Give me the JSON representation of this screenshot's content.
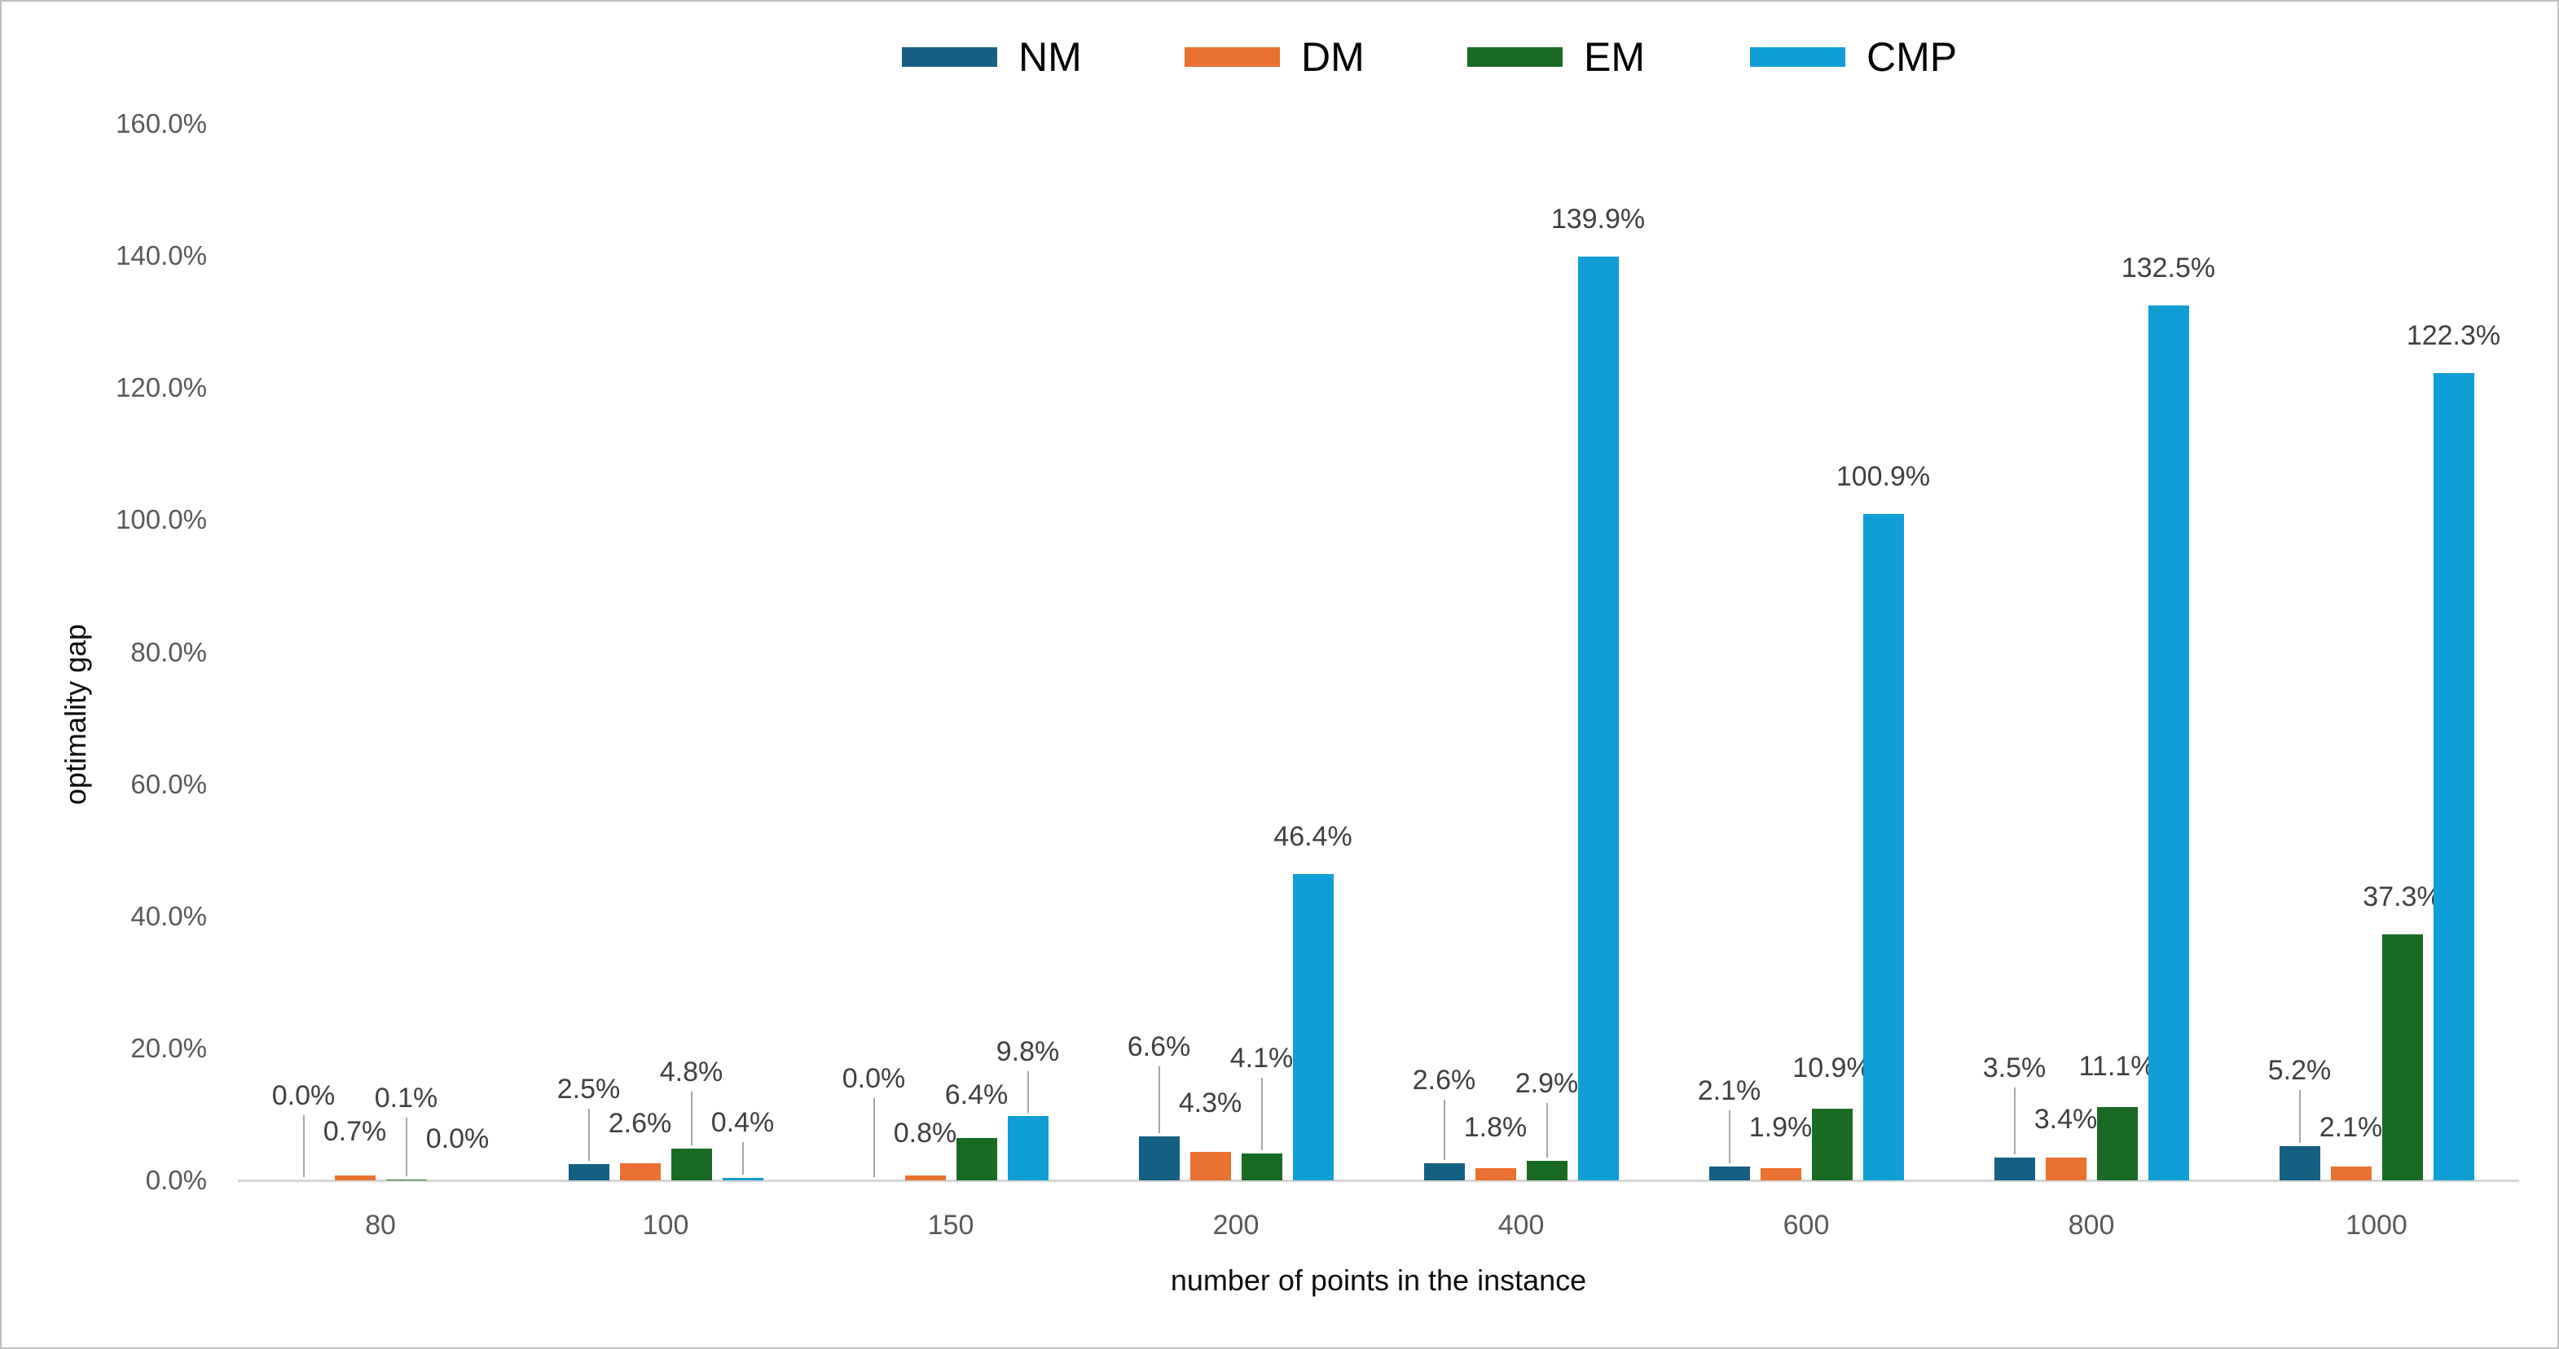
{
  "chart_data": {
    "type": "bar",
    "title": "",
    "categories": [
      "80",
      "100",
      "150",
      "200",
      "400",
      "600",
      "800",
      "1000"
    ],
    "series": [
      {
        "name": "NM",
        "color": "#156082",
        "values": [
          0.0,
          2.5,
          0.0,
          6.6,
          2.6,
          2.1,
          3.5,
          5.2
        ],
        "labels": [
          "0.0%",
          "2.5%",
          "0.0%",
          "6.6%",
          "2.6%",
          "2.1%",
          "3.5%",
          "5.2%"
        ]
      },
      {
        "name": "DM",
        "color": "#E97132",
        "values": [
          0.7,
          2.6,
          0.8,
          4.3,
          1.8,
          1.9,
          3.4,
          2.1
        ],
        "labels": [
          "0.7%",
          "2.6%",
          "0.8%",
          "4.3%",
          "1.8%",
          "1.9%",
          "3.4%",
          "2.1%"
        ]
      },
      {
        "name": "EM",
        "color": "#196B24",
        "values": [
          0.1,
          4.8,
          6.4,
          4.1,
          2.9,
          10.9,
          11.1,
          37.3
        ],
        "labels": [
          "0.1%",
          "4.8%",
          "6.4%",
          "4.1%",
          "2.9%",
          "10.9%",
          "11.1%",
          "37.3%"
        ]
      },
      {
        "name": "CMP",
        "color": "#0F9ED5",
        "values": [
          0.0,
          0.4,
          9.8,
          46.4,
          139.9,
          100.9,
          132.5,
          122.3
        ],
        "labels": [
          "0.0%",
          "0.4%",
          "9.8%",
          "46.4%",
          "139.9%",
          "100.9%",
          "132.5%",
          "122.3%"
        ]
      }
    ],
    "xlabel": "number of points in the instance",
    "ylabel": "optimality gap",
    "ylim": [
      0,
      160
    ],
    "ytick_step": 20,
    "ytick_labels": [
      "0.0%",
      "20.0%",
      "40.0%",
      "60.0%",
      "80.0%",
      "100.0%",
      "120.0%",
      "140.0%",
      "160.0%"
    ],
    "grid": false,
    "legend": {
      "position": "top",
      "entries": [
        "NM",
        "DM",
        "EM",
        "CMP"
      ]
    },
    "palette": {
      "background": "#FFFFFF",
      "border": "#BFBFBF",
      "axis_line": "#D6D6D6",
      "tick_text": "#595959",
      "data_label_text": "#404040",
      "axis_title_text": "#0D0D0D",
      "leader_line": "#A6A6A6"
    }
  }
}
